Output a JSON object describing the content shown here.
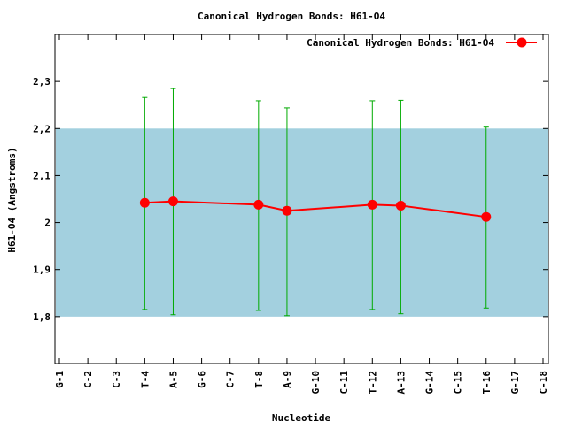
{
  "chart_data": {
    "type": "line",
    "title": "Canonical Hydrogen Bonds: H61-O4",
    "xlabel": "Nucleotide",
    "ylabel": "H61-O4 (Angstroms)",
    "ylim": [
      1.7,
      2.4
    ],
    "yticks": [
      "1,8",
      "1,9",
      "2",
      "2,1",
      "2,2",
      "2,3"
    ],
    "ytick_values": [
      1.8,
      1.9,
      2.0,
      2.1,
      2.2,
      2.3
    ],
    "categories": [
      "G-1",
      "C-2",
      "C-3",
      "T-4",
      "A-5",
      "G-6",
      "C-7",
      "T-8",
      "A-9",
      "G-10",
      "C-11",
      "T-12",
      "A-13",
      "G-14",
      "C-15",
      "T-16",
      "G-17",
      "C-18"
    ],
    "reference_band": {
      "low": 1.8,
      "high": 2.2,
      "color": "#a3d0df"
    },
    "legend_position": "top-right",
    "series": [
      {
        "name": "Canonical Hydrogen Bonds: H61-O4",
        "color": "#ff0000",
        "errorbar_color": "#00aa00",
        "points": [
          {
            "x": "T-4",
            "y": 2.042,
            "ylow": 1.815,
            "yhigh": 2.266
          },
          {
            "x": "A-5",
            "y": 2.045,
            "ylow": 1.804,
            "yhigh": 2.285
          },
          {
            "x": "T-8",
            "y": 2.038,
            "ylow": 1.813,
            "yhigh": 2.259
          },
          {
            "x": "A-9",
            "y": 2.025,
            "ylow": 1.802,
            "yhigh": 2.244
          },
          {
            "x": "T-12",
            "y": 2.038,
            "ylow": 1.815,
            "yhigh": 2.259
          },
          {
            "x": "A-13",
            "y": 2.036,
            "ylow": 1.806,
            "yhigh": 2.26
          },
          {
            "x": "T-16",
            "y": 2.012,
            "ylow": 1.818,
            "yhigh": 2.203
          }
        ]
      }
    ]
  }
}
